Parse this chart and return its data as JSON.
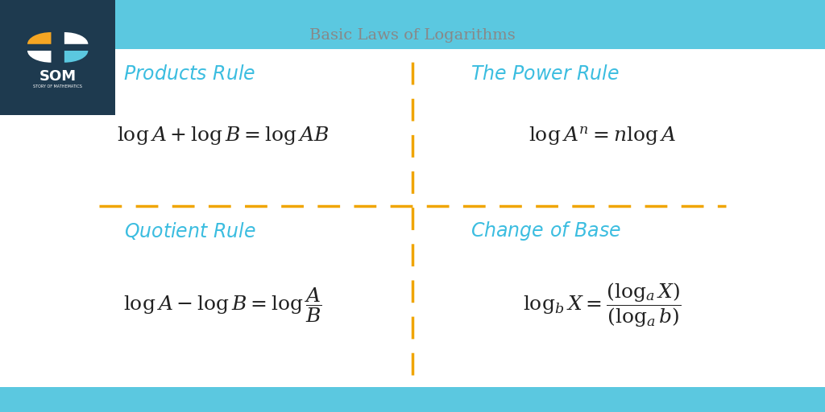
{
  "title": "Basic Laws of Logarithms",
  "title_color": "#888888",
  "title_fontsize": 14,
  "background_color": "#ffffff",
  "top_bar_color": "#5bc8e0",
  "bottom_bar_color": "#5bc8e0",
  "logo_bg_color": "#1e3a4f",
  "divider_color": "#f0a500",
  "rule_title_color": "#3bbde0",
  "formula_color": "#222222",
  "rule_titles": [
    "Products Rule",
    "The Power Rule",
    "Quotient Rule",
    "Change of Base"
  ],
  "formulas": [
    "$\\log A + \\log B = \\log AB$",
    "$\\log A^n = n \\log A$",
    "$\\log A - \\log B = \\log \\dfrac{A}{B}$",
    "$\\log_b X = \\dfrac{(\\log_a X)}{(\\log_a b)}$"
  ]
}
